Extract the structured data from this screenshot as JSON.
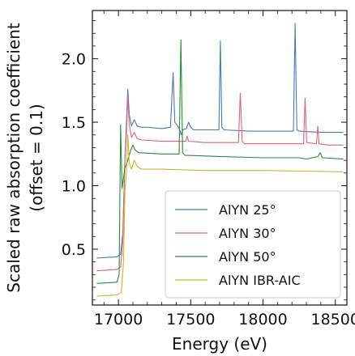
{
  "chart_data": {
    "type": "line",
    "title": "",
    "xlabel": "Energy (eV)",
    "ylabel_lines": [
      "Scaled raw absorption coefficient",
      "(offset = 0.1)"
    ],
    "xlim": [
      16820,
      18580
    ],
    "ylim": [
      0.06,
      2.38
    ],
    "x_ticks": [
      17000,
      17500,
      18000,
      18500
    ],
    "y_ticks": [
      0.5,
      1.0,
      1.5,
      2.0
    ],
    "grid": false,
    "legend_position": "lower-right",
    "series": [
      {
        "name": "AlYN 25°",
        "color": "#4a78b4",
        "points": [
          [
            16850,
            0.43
          ],
          [
            16990,
            0.44
          ],
          [
            17015,
            0.46
          ],
          [
            17030,
            0.62
          ],
          [
            17045,
            1.2
          ],
          [
            17055,
            1.48
          ],
          [
            17065,
            1.76
          ],
          [
            17075,
            1.56
          ],
          [
            17090,
            1.47
          ],
          [
            17110,
            1.52
          ],
          [
            17130,
            1.47
          ],
          [
            17160,
            1.46
          ],
          [
            17200,
            1.46
          ],
          [
            17300,
            1.45
          ],
          [
            17360,
            1.46
          ],
          [
            17378,
            1.89
          ],
          [
            17390,
            1.5
          ],
          [
            17410,
            1.47
          ],
          [
            17425,
            1.44
          ],
          [
            17433,
            1.4
          ],
          [
            17445,
            1.44
          ],
          [
            17470,
            1.45
          ],
          [
            17485,
            1.5
          ],
          [
            17500,
            1.46
          ],
          [
            17520,
            1.44
          ],
          [
            17600,
            1.44
          ],
          [
            17695,
            1.44
          ],
          [
            17705,
            2.14
          ],
          [
            17715,
            1.46
          ],
          [
            17730,
            1.44
          ],
          [
            17900,
            1.43
          ],
          [
            18100,
            1.43
          ],
          [
            18210,
            1.43
          ],
          [
            18222,
            2.28
          ],
          [
            18234,
            1.44
          ],
          [
            18250,
            1.43
          ],
          [
            18400,
            1.42
          ],
          [
            18555,
            1.42
          ]
        ]
      },
      {
        "name": "AlYN 30°",
        "color": "#e06478",
        "points": [
          [
            16850,
            0.33
          ],
          [
            16990,
            0.34
          ],
          [
            17015,
            0.36
          ],
          [
            17030,
            0.56
          ],
          [
            17045,
            1.22
          ],
          [
            17055,
            1.4
          ],
          [
            17065,
            1.7
          ],
          [
            17075,
            1.48
          ],
          [
            17090,
            1.38
          ],
          [
            17110,
            1.42
          ],
          [
            17130,
            1.37
          ],
          [
            17160,
            1.36
          ],
          [
            17300,
            1.35
          ],
          [
            17465,
            1.35
          ],
          [
            17475,
            1.39
          ],
          [
            17485,
            1.35
          ],
          [
            17600,
            1.34
          ],
          [
            17830,
            1.34
          ],
          [
            17843,
            1.73
          ],
          [
            17856,
            1.35
          ],
          [
            17870,
            1.33
          ],
          [
            18100,
            1.33
          ],
          [
            18280,
            1.33
          ],
          [
            18291,
            1.69
          ],
          [
            18302,
            1.34
          ],
          [
            18370,
            1.33
          ],
          [
            18379,
            1.47
          ],
          [
            18388,
            1.33
          ],
          [
            18450,
            1.32
          ],
          [
            18555,
            1.32
          ]
        ]
      },
      {
        "name": "AlYN 50°",
        "color": "#2a8a3a",
        "points": [
          [
            16850,
            0.23
          ],
          [
            16990,
            0.24
          ],
          [
            17005,
            0.3
          ],
          [
            17015,
            1.48
          ],
          [
            17025,
            0.98
          ],
          [
            17045,
            1.14
          ],
          [
            17065,
            1.2
          ],
          [
            17085,
            1.28
          ],
          [
            17100,
            1.32
          ],
          [
            17115,
            1.28
          ],
          [
            17140,
            1.26
          ],
          [
            17300,
            1.25
          ],
          [
            17420,
            1.25
          ],
          [
            17432,
            2.15
          ],
          [
            17444,
            1.26
          ],
          [
            17460,
            1.24
          ],
          [
            17700,
            1.23
          ],
          [
            18000,
            1.22
          ],
          [
            18250,
            1.22
          ],
          [
            18300,
            1.21
          ],
          [
            18380,
            1.23
          ],
          [
            18395,
            1.26
          ],
          [
            18410,
            1.22
          ],
          [
            18555,
            1.21
          ]
        ]
      },
      {
        "name": "AlYN IBR-AIC",
        "color": "#c8b428",
        "points": [
          [
            16850,
            0.13
          ],
          [
            16990,
            0.14
          ],
          [
            17020,
            0.16
          ],
          [
            17035,
            0.4
          ],
          [
            17045,
            0.95
          ],
          [
            17055,
            1.1
          ],
          [
            17065,
            1.4
          ],
          [
            17075,
            1.18
          ],
          [
            17090,
            1.13
          ],
          [
            17110,
            1.2
          ],
          [
            17130,
            1.15
          ],
          [
            17160,
            1.13
          ],
          [
            17300,
            1.13
          ],
          [
            17600,
            1.12
          ],
          [
            18000,
            1.12
          ],
          [
            18555,
            1.11
          ]
        ]
      }
    ]
  }
}
